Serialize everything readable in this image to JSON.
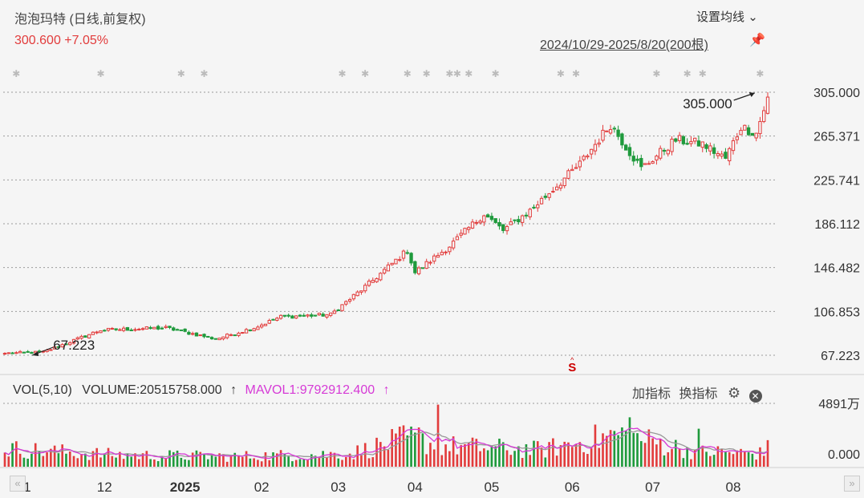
{
  "header": {
    "title": "泡泡玛特 (日线,前复权)",
    "price": "300.600 +7.05%",
    "set_ma_label": "设置均线",
    "set_ma_chevron": "⌄",
    "range_label": "2024/10/29-2025/8/20(200根)",
    "pin_icon": "pin-icon"
  },
  "colors": {
    "up": "#e23c3c",
    "down": "#1f9a3c",
    "ma1": "#d63ad6",
    "ma2": "#999999",
    "grid": "#9a9a9a",
    "signal": "#cc0000"
  },
  "volume_panel": {
    "name": "VOL(5,10)",
    "volume_label": "VOLUME:20515758.000",
    "volume_arrow": "↑",
    "ma_label": "MAVOL1:9792912.400",
    "ma_arrow": "↑",
    "add_indicator": "加指标",
    "switch_indicator": "换指标",
    "gear_icon": "gear-icon",
    "close_icon": "close-icon"
  },
  "nav": {
    "left": "«",
    "right": "»"
  },
  "chart_data": [
    {
      "type": "candlestick",
      "title": "泡泡玛特 (日线,前复权)",
      "bars": 200,
      "ylim": [
        67.223,
        305.0
      ],
      "yticks": [
        "305.000",
        "265.371",
        "225.741",
        "186.112",
        "146.482",
        "106.853",
        "67.223"
      ],
      "xticks": [
        "11",
        "12",
        "2025",
        "02",
        "03",
        "04",
        "05",
        "06",
        "07",
        "08"
      ],
      "xtick_bars": [
        5,
        26,
        47,
        67,
        87,
        107,
        127,
        148,
        169,
        190
      ],
      "annotations": [
        {
          "text": "305.000",
          "bar": 196
        },
        {
          "text": "67.223",
          "bar": 8
        }
      ],
      "signal_marker": {
        "text": "S",
        "bar": 148
      },
      "event_marker_bars": [
        3,
        25,
        46,
        52,
        88,
        94,
        105,
        110,
        116,
        118,
        121,
        128,
        145,
        149,
        170,
        178,
        182,
        197
      ],
      "key_closes": [
        {
          "bar": 0,
          "value": 69
        },
        {
          "bar": 10,
          "value": 70
        },
        {
          "bar": 25,
          "value": 90
        },
        {
          "bar": 42,
          "value": 92
        },
        {
          "bar": 55,
          "value": 82
        },
        {
          "bar": 65,
          "value": 92
        },
        {
          "bar": 72,
          "value": 102
        },
        {
          "bar": 85,
          "value": 104
        },
        {
          "bar": 95,
          "value": 132
        },
        {
          "bar": 105,
          "value": 162
        },
        {
          "bar": 107,
          "value": 142
        },
        {
          "bar": 116,
          "value": 166
        },
        {
          "bar": 125,
          "value": 195
        },
        {
          "bar": 130,
          "value": 180
        },
        {
          "bar": 137,
          "value": 198
        },
        {
          "bar": 150,
          "value": 240
        },
        {
          "bar": 158,
          "value": 276
        },
        {
          "bar": 166,
          "value": 236
        },
        {
          "bar": 175,
          "value": 262
        },
        {
          "bar": 182,
          "value": 258
        },
        {
          "bar": 188,
          "value": 245
        },
        {
          "bar": 192,
          "value": 274
        },
        {
          "bar": 196,
          "value": 268
        },
        {
          "bar": 199,
          "value": 300.6
        }
      ]
    },
    {
      "type": "bar",
      "title": "VOL(5,10)",
      "ylim": [
        0,
        48910000
      ],
      "yticks": [
        "4891万",
        "0.000"
      ],
      "last_volume": 20515758.0,
      "mavol1": 9792912.4,
      "series": [
        {
          "name": "MAVOL1",
          "color": "#d63ad6"
        }
      ],
      "volume_level_keypoints": [
        {
          "bar": 0,
          "value": 14000000
        },
        {
          "bar": 30,
          "value": 9000000
        },
        {
          "bar": 60,
          "value": 8000000
        },
        {
          "bar": 90,
          "value": 10000000
        },
        {
          "bar": 105,
          "value": 22000000
        },
        {
          "bar": 115,
          "value": 16000000
        },
        {
          "bar": 140,
          "value": 13000000
        },
        {
          "bar": 160,
          "value": 25000000
        },
        {
          "bar": 180,
          "value": 12000000
        },
        {
          "bar": 199,
          "value": 10000000
        }
      ]
    }
  ]
}
